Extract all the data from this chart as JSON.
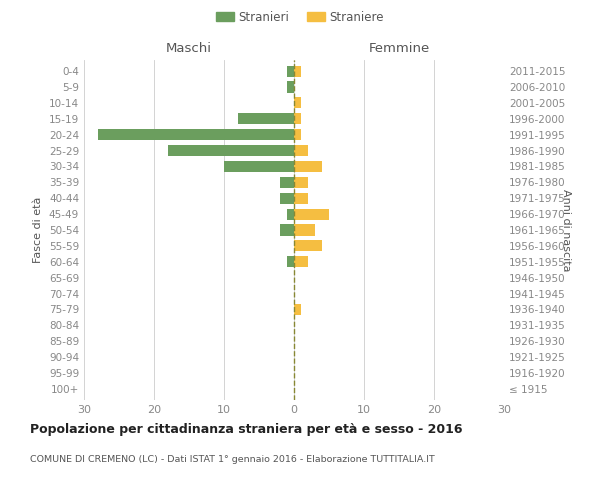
{
  "age_groups": [
    "100+",
    "95-99",
    "90-94",
    "85-89",
    "80-84",
    "75-79",
    "70-74",
    "65-69",
    "60-64",
    "55-59",
    "50-54",
    "45-49",
    "40-44",
    "35-39",
    "30-34",
    "25-29",
    "20-24",
    "15-19",
    "10-14",
    "5-9",
    "0-4"
  ],
  "birth_years": [
    "≤ 1915",
    "1916-1920",
    "1921-1925",
    "1926-1930",
    "1931-1935",
    "1936-1940",
    "1941-1945",
    "1946-1950",
    "1951-1955",
    "1956-1960",
    "1961-1965",
    "1966-1970",
    "1971-1975",
    "1976-1980",
    "1981-1985",
    "1986-1990",
    "1991-1995",
    "1996-2000",
    "2001-2005",
    "2006-2010",
    "2011-2015"
  ],
  "maschi": [
    0,
    0,
    0,
    0,
    0,
    0,
    0,
    0,
    1,
    0,
    2,
    1,
    2,
    2,
    10,
    18,
    28,
    8,
    0,
    1,
    1
  ],
  "femmine": [
    0,
    0,
    0,
    0,
    0,
    1,
    0,
    0,
    2,
    4,
    3,
    5,
    2,
    2,
    4,
    2,
    1,
    1,
    1,
    0,
    1
  ],
  "color_maschi": "#6b9e5e",
  "color_femmine": "#f5be41",
  "color_dashed_line": "#888833",
  "title": "Popolazione per cittadinanza straniera per età e sesso - 2016",
  "subtitle": "COMUNE DI CREMENO (LC) - Dati ISTAT 1° gennaio 2016 - Elaborazione TUTTITALIA.IT",
  "legend_maschi": "Stranieri",
  "legend_femmine": "Straniere",
  "xlabel_left": "Maschi",
  "xlabel_right": "Femmine",
  "ylabel_left": "Fasce di età",
  "ylabel_right": "Anni di nascita",
  "xlim": 30,
  "background_color": "#ffffff",
  "grid_color": "#cccccc",
  "text_color_dark": "#222222",
  "text_color_mid": "#555555",
  "text_color_light": "#888888"
}
